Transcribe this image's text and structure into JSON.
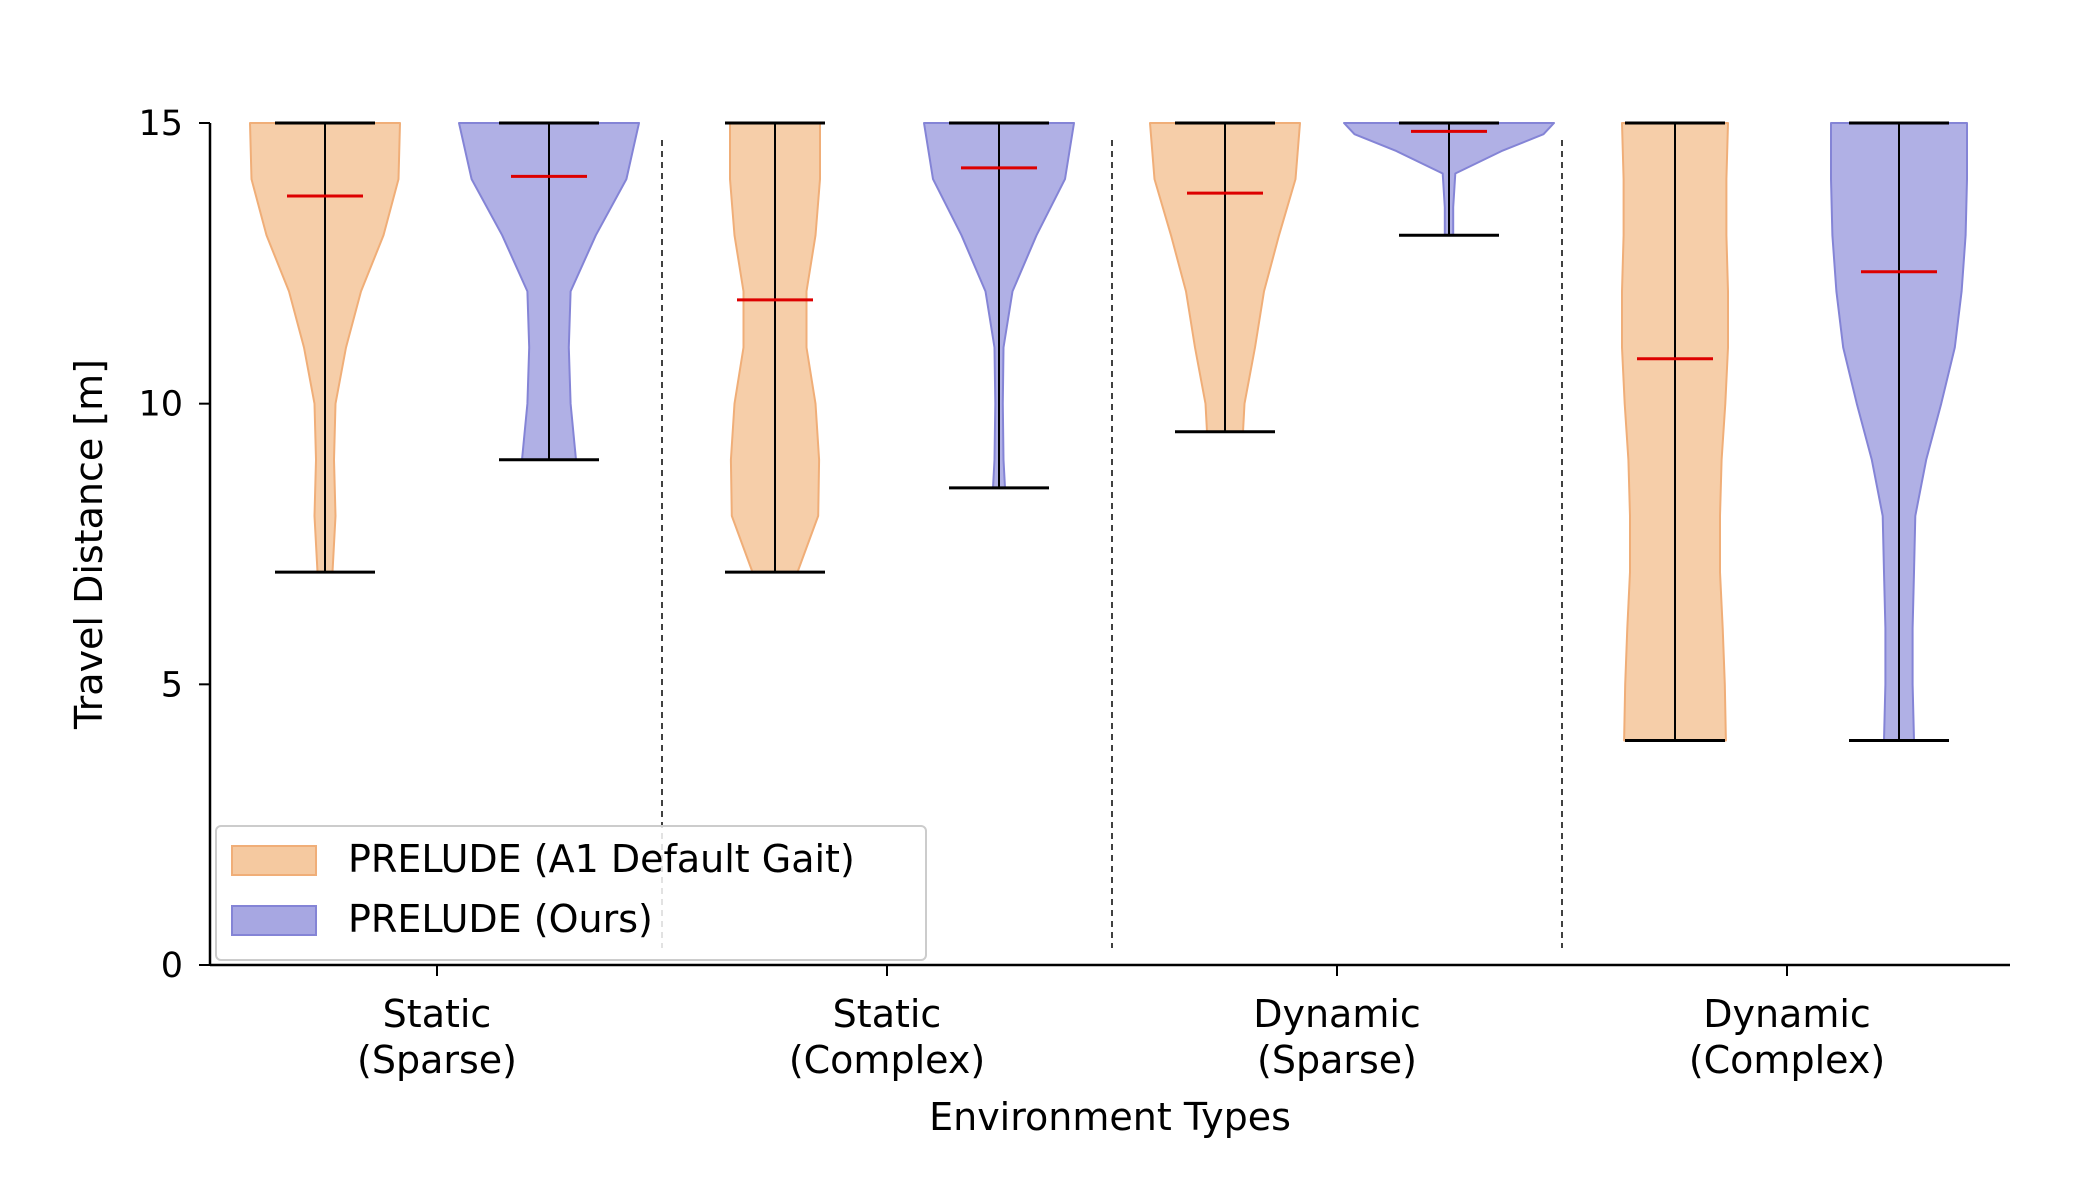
{
  "chart_data": {
    "type": "violin",
    "xlabel": "Environment Types",
    "ylabel": "Travel Distance [m]",
    "ylim": [
      0,
      15
    ],
    "yticks": [
      0,
      5,
      10,
      15
    ],
    "grid": false,
    "legend_position": "lower-left",
    "categories": [
      {
        "line1": "Static",
        "line2": "(Sparse)"
      },
      {
        "line1": "Static",
        "line2": "(Complex)"
      },
      {
        "line1": "Dynamic",
        "line2": "(Sparse)"
      },
      {
        "line1": "Dynamic",
        "line2": "(Complex)"
      }
    ],
    "series": [
      {
        "name": "PRELUDE (A1 Default Gait)",
        "fill": "#f5c9a0",
        "edge": "#f0ae78",
        "stats": [
          {
            "min": 7.0,
            "max": 15.0,
            "mean": 13.7
          },
          {
            "min": 7.0,
            "max": 15.0,
            "mean": 11.85
          },
          {
            "min": 9.5,
            "max": 15.0,
            "mean": 13.75
          },
          {
            "min": 4.0,
            "max": 15.0,
            "mean": 10.8
          }
        ]
      },
      {
        "name": "PRELUDE (Ours)",
        "fill": "#a7a7e2",
        "edge": "#8484d6",
        "stats": [
          {
            "min": 9.0,
            "max": 15.0,
            "mean": 14.05
          },
          {
            "min": 8.5,
            "max": 15.0,
            "mean": 14.2
          },
          {
            "min": 13.0,
            "max": 15.0,
            "mean": 14.85
          },
          {
            "min": 4.0,
            "max": 15.0,
            "mean": 12.35
          }
        ]
      }
    ],
    "mean_color": "#dd0000",
    "whisker_color": "#000000"
  }
}
